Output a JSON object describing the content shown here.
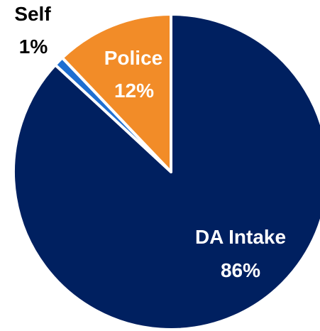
{
  "chart_data": {
    "type": "pie",
    "title": "",
    "slices": [
      {
        "label": "DA Intake",
        "value": 86,
        "display": "86%",
        "color": "#002060",
        "label_color": "#ffffff"
      },
      {
        "label": "Self",
        "value": 1,
        "display": "1%",
        "color": "#1f6fd1",
        "label_color": "#000000"
      },
      {
        "label": "Police",
        "value": 12,
        "display": "12%",
        "color": "#f28c28",
        "label_color": "#ffffff"
      }
    ],
    "start_angle_deg": 0,
    "direction": "clockwise",
    "slice_border_color": "#ffffff",
    "legend": "none"
  }
}
